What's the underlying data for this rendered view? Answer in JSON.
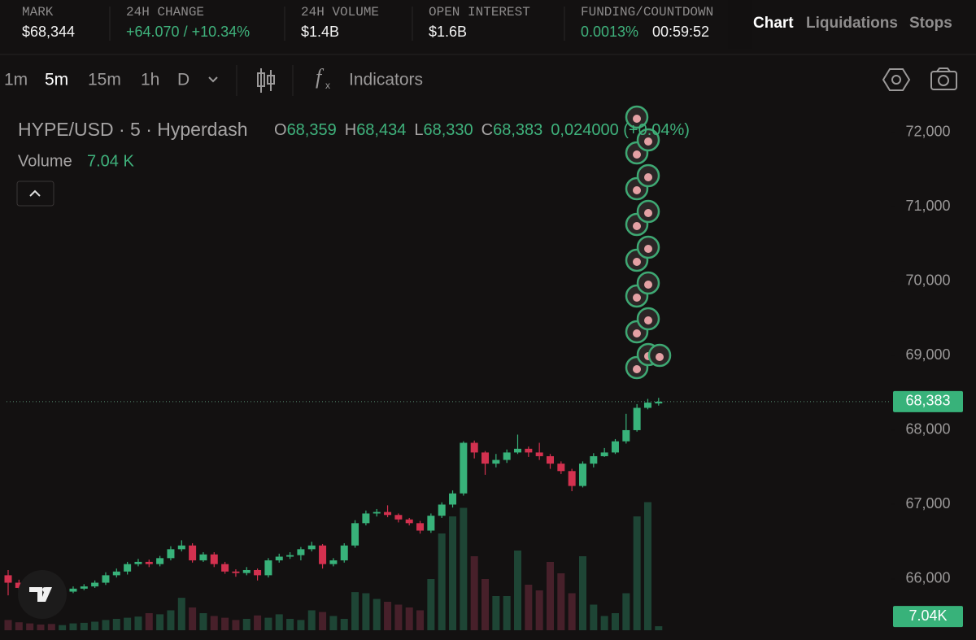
{
  "header": {
    "stats": [
      {
        "label": "MARK",
        "values": [
          "$68,344"
        ]
      },
      {
        "label": "24H CHANGE",
        "values": [
          "+64.070 / +10.34%"
        ]
      },
      {
        "label": "24H VOLUME",
        "values": [
          "$1.4B"
        ]
      },
      {
        "label": "OPEN INTEREST",
        "values": [
          "$1.6B"
        ]
      },
      {
        "label": "FUNDING/COUNTDOWN",
        "values": [
          "0.0013%",
          "00:59:52"
        ]
      }
    ],
    "tabs": [
      "Chart",
      "Liquidations",
      "Stops"
    ]
  },
  "toolbar": {
    "intervals": [
      "1m",
      "5m",
      "15m",
      "1h",
      "D"
    ],
    "indicators": "Indicators"
  },
  "legend": {
    "symbol": "HYPE/USD · 5 · Hyperdash",
    "open_label": "O",
    "open": "68,359",
    "high_label": "H",
    "high": "68,434",
    "low_label": "L",
    "low": "68,330",
    "close_label": "C",
    "close": "68,383",
    "change": "0,024000 (+0.04%)",
    "volume_title": "Volume",
    "volume": "7.04 K"
  },
  "chart_data": {
    "type": "candlestick",
    "open": [
      66050,
      65950,
      65880,
      65850,
      65820,
      65800,
      65830,
      65870,
      65900,
      65950,
      66050,
      66100,
      66200,
      66230,
      66200,
      66280,
      66400,
      66450,
      66250,
      66330,
      66200,
      66100,
      66080,
      66120,
      66050,
      66250,
      66300,
      66320,
      66400,
      66450,
      66200,
      66250,
      66450,
      66750,
      66880,
      66900,
      66860,
      66800,
      66750,
      66650,
      66850,
      67000,
      67150,
      67830,
      67700,
      67550,
      67600,
      67700,
      67750,
      67700,
      67650,
      67550,
      67450,
      67250,
      67550,
      67650,
      67700,
      67850,
      68000,
      68300,
      68359
    ],
    "high": [
      66120,
      65990,
      65920,
      65880,
      65860,
      65860,
      65900,
      65930,
      65980,
      66090,
      66140,
      66230,
      66270,
      66260,
      66310,
      66440,
      66520,
      66480,
      66360,
      66360,
      66230,
      66130,
      66160,
      66140,
      66280,
      66340,
      66360,
      66430,
      66500,
      66470,
      66280,
      66480,
      66790,
      66920,
      66940,
      66990,
      66880,
      66820,
      66780,
      66880,
      67030,
      67190,
      67850,
      67860,
      67720,
      67680,
      67740,
      67940,
      67780,
      67830,
      67680,
      67580,
      67480,
      67580,
      67690,
      67760,
      67880,
      68220,
      68350,
      68420,
      68434
    ],
    "low": [
      65780,
      65850,
      65800,
      65790,
      65770,
      65780,
      65810,
      65850,
      65880,
      65920,
      66020,
      66060,
      66170,
      66160,
      66170,
      66250,
      66370,
      66220,
      66230,
      66160,
      66070,
      66030,
      66050,
      65980,
      66020,
      66220,
      66270,
      66250,
      66370,
      66140,
      66170,
      66220,
      66420,
      66720,
      66840,
      66830,
      66760,
      66720,
      66610,
      66620,
      66820,
      66960,
      67120,
      67620,
      67400,
      67500,
      67560,
      67680,
      67640,
      67600,
      67480,
      67410,
      67180,
      67230,
      67500,
      67640,
      67680,
      67820,
      67980,
      68280,
      68330
    ],
    "close": [
      65950,
      65880,
      65850,
      65820,
      65800,
      65830,
      65870,
      65900,
      65950,
      66050,
      66100,
      66200,
      66230,
      66200,
      66280,
      66400,
      66450,
      66250,
      66330,
      66200,
      66100,
      66080,
      66120,
      66050,
      66250,
      66300,
      66320,
      66400,
      66450,
      66200,
      66250,
      66450,
      66750,
      66880,
      66900,
      66860,
      66800,
      66750,
      66650,
      66850,
      67000,
      67150,
      67830,
      67700,
      67550,
      67600,
      67700,
      67750,
      67700,
      67650,
      67550,
      67450,
      67250,
      67550,
      67650,
      67700,
      67850,
      68000,
      68300,
      68370,
      68383
    ],
    "volume": [
      18,
      14,
      12,
      10,
      11,
      9,
      12,
      13,
      15,
      18,
      20,
      22,
      24,
      30,
      28,
      35,
      57,
      40,
      30,
      25,
      22,
      18,
      20,
      26,
      22,
      28,
      20,
      18,
      35,
      32,
      25,
      20,
      67,
      65,
      55,
      50,
      45,
      40,
      35,
      90,
      170,
      200,
      215,
      130,
      90,
      60,
      60,
      140,
      80,
      70,
      120,
      100,
      65,
      130,
      45,
      25,
      30,
      65,
      200,
      225,
      7.04
    ],
    "ylim": [
      65180,
      72360
    ],
    "yticks": [
      {
        "value": 66000,
        "label": "66,000"
      },
      {
        "value": 67000,
        "label": "67,000"
      },
      {
        "value": 68000,
        "label": "68,000"
      },
      {
        "value": 69000,
        "label": "69,000"
      },
      {
        "value": 70000,
        "label": "70,000"
      },
      {
        "value": 71000,
        "label": "71,000"
      },
      {
        "value": 72000,
        "label": "72,000"
      }
    ],
    "y2lim": [
      0,
      330
    ],
    "price_tag": {
      "value": 68383,
      "label": "68,383"
    },
    "volume_tag": {
      "value": 7.04,
      "label": "7.04K"
    },
    "up_color": "#38b27a",
    "down_color": "#d3314f",
    "up_volume_color": "#1e4535",
    "down_volume_color": "#47202a"
  }
}
